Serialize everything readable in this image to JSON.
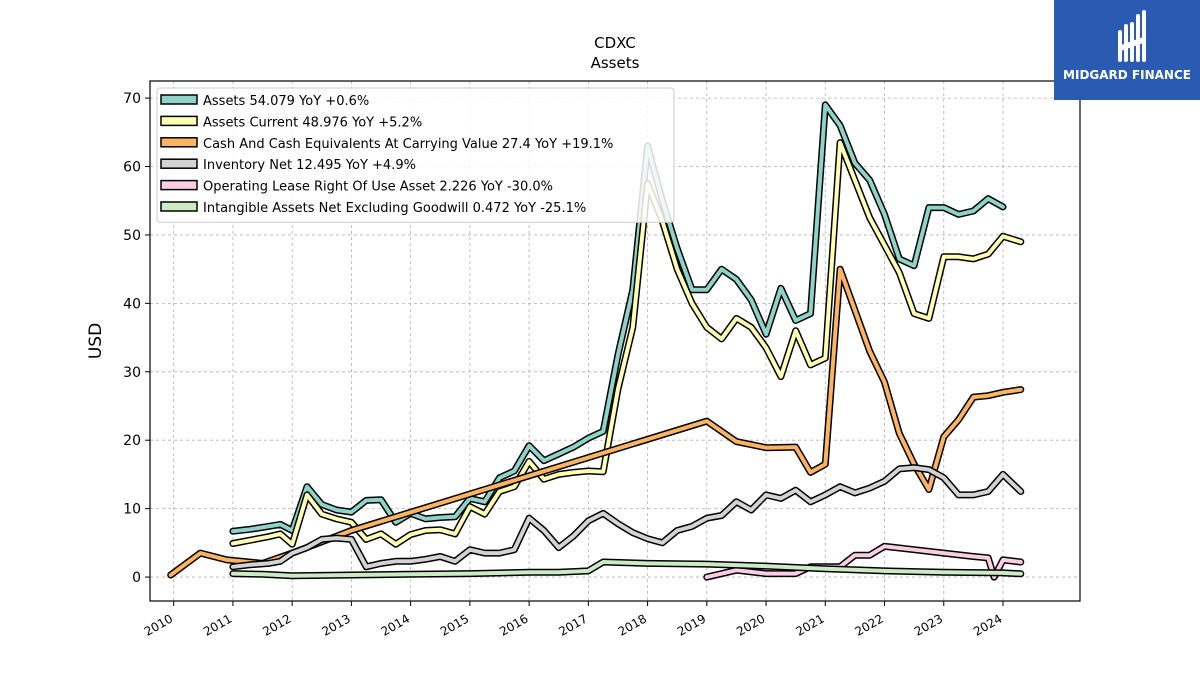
{
  "brand": {
    "name": "MIDGARD FINANCE",
    "color": "#2b5ab3"
  },
  "chart_data": {
    "type": "line",
    "title": "CDXC",
    "subtitle": "Assets",
    "ylabel": "USD",
    "xlim": [
      2009.6,
      2025.3
    ],
    "ylim": [
      -3.5,
      72.5
    ],
    "yticks": [
      0,
      10,
      20,
      30,
      40,
      50,
      60,
      70
    ],
    "xticks": [
      "2010",
      "2011",
      "2012",
      "2013",
      "2014",
      "2015",
      "2016",
      "2017",
      "2018",
      "2019",
      "2020",
      "2021",
      "2022",
      "2023",
      "2024"
    ],
    "grid": true,
    "legend_position": "top-left",
    "series": [
      {
        "name": "Assets",
        "legend": "Assets  54.079 YoY +0.6%",
        "color": "#8dd3c7",
        "points": [
          [
            2011.0,
            6.7
          ],
          [
            2011.3,
            7.0
          ],
          [
            2011.6,
            7.4
          ],
          [
            2011.8,
            7.7
          ],
          [
            2012.0,
            6.8
          ],
          [
            2012.25,
            13.2
          ],
          [
            2012.5,
            10.6
          ],
          [
            2012.75,
            9.8
          ],
          [
            2013.0,
            9.5
          ],
          [
            2013.25,
            11.2
          ],
          [
            2013.5,
            11.3
          ],
          [
            2013.75,
            8.0
          ],
          [
            2014.0,
            9.3
          ],
          [
            2014.25,
            8.5
          ],
          [
            2014.5,
            8.7
          ],
          [
            2014.75,
            8.8
          ],
          [
            2015.0,
            11.5
          ],
          [
            2015.25,
            11.0
          ],
          [
            2015.5,
            14.5
          ],
          [
            2015.75,
            15.5
          ],
          [
            2016.0,
            19.2
          ],
          [
            2016.25,
            17.0
          ],
          [
            2016.5,
            18.0
          ],
          [
            2016.75,
            19.0
          ],
          [
            2017.0,
            20.3
          ],
          [
            2017.25,
            21.3
          ],
          [
            2017.5,
            32.5
          ],
          [
            2017.75,
            42.0
          ],
          [
            2018.0,
            63.0
          ],
          [
            2018.25,
            55.0
          ],
          [
            2018.5,
            48.0
          ],
          [
            2018.75,
            42.0
          ],
          [
            2019.0,
            42.0
          ],
          [
            2019.25,
            45.0
          ],
          [
            2019.5,
            43.5
          ],
          [
            2019.75,
            40.5
          ],
          [
            2020.0,
            35.5
          ],
          [
            2020.25,
            42.2
          ],
          [
            2020.5,
            37.5
          ],
          [
            2020.75,
            38.5
          ],
          [
            2021.0,
            69.0
          ],
          [
            2021.25,
            66.0
          ],
          [
            2021.5,
            60.5
          ],
          [
            2021.75,
            58.0
          ],
          [
            2022.0,
            53.0
          ],
          [
            2022.25,
            46.5
          ],
          [
            2022.5,
            45.5
          ],
          [
            2022.75,
            54.0
          ],
          [
            2023.0,
            54.0
          ],
          [
            2023.25,
            53.0
          ],
          [
            2023.5,
            53.5
          ],
          [
            2023.75,
            55.3
          ],
          [
            2024.0,
            54.1
          ]
        ]
      },
      {
        "name": "Assets Current",
        "legend": "Assets Current  48.976 YoY +5.2%",
        "color": "#ffffb3",
        "points": [
          [
            2011.0,
            4.9
          ],
          [
            2011.3,
            5.4
          ],
          [
            2011.6,
            5.9
          ],
          [
            2011.8,
            6.3
          ],
          [
            2012.0,
            4.8
          ],
          [
            2012.25,
            12.0
          ],
          [
            2012.5,
            9.2
          ],
          [
            2012.75,
            8.5
          ],
          [
            2013.0,
            8.0
          ],
          [
            2013.25,
            5.5
          ],
          [
            2013.5,
            6.3
          ],
          [
            2013.75,
            4.8
          ],
          [
            2014.0,
            6.2
          ],
          [
            2014.25,
            6.8
          ],
          [
            2014.5,
            6.9
          ],
          [
            2014.75,
            6.3
          ],
          [
            2015.0,
            10.3
          ],
          [
            2015.25,
            9.2
          ],
          [
            2015.5,
            12.5
          ],
          [
            2015.75,
            13.2
          ],
          [
            2016.0,
            16.9
          ],
          [
            2016.25,
            14.3
          ],
          [
            2016.5,
            15.0
          ],
          [
            2016.75,
            15.3
          ],
          [
            2017.0,
            15.5
          ],
          [
            2017.25,
            15.4
          ],
          [
            2017.5,
            27.5
          ],
          [
            2017.75,
            36.5
          ],
          [
            2018.0,
            57.5
          ],
          [
            2018.25,
            52.0
          ],
          [
            2018.5,
            45.0
          ],
          [
            2018.75,
            40.0
          ],
          [
            2019.0,
            36.5
          ],
          [
            2019.25,
            34.8
          ],
          [
            2019.5,
            37.8
          ],
          [
            2019.75,
            36.5
          ],
          [
            2020.0,
            33.5
          ],
          [
            2020.25,
            29.3
          ],
          [
            2020.5,
            36.0
          ],
          [
            2020.75,
            31.0
          ],
          [
            2021.0,
            32.0
          ],
          [
            2021.25,
            63.5
          ],
          [
            2021.5,
            58.0
          ],
          [
            2021.75,
            52.5
          ],
          [
            2022.0,
            48.5
          ],
          [
            2022.25,
            44.5
          ],
          [
            2022.5,
            38.5
          ],
          [
            2022.75,
            37.8
          ],
          [
            2023.0,
            46.8
          ],
          [
            2023.25,
            46.8
          ],
          [
            2023.5,
            46.5
          ],
          [
            2023.75,
            47.2
          ],
          [
            2024.0,
            49.8
          ],
          [
            2024.3,
            49.0
          ]
        ]
      },
      {
        "name": "Cash And Cash Equivalents At Carrying Value",
        "legend": "Cash And Cash Equivalents At Carrying Value  27.4 YoY +19.1%",
        "color": "#fdb462",
        "points": [
          [
            2009.95,
            0.3
          ],
          [
            2010.45,
            3.5
          ],
          [
            2010.9,
            2.5
          ],
          [
            2011.5,
            2.0
          ],
          [
            2012.0,
            3.5
          ],
          [
            2013.0,
            6.8
          ],
          [
            2019.0,
            22.8
          ],
          [
            2019.5,
            19.8
          ],
          [
            2020.0,
            18.9
          ],
          [
            2020.5,
            19.0
          ],
          [
            2020.75,
            15.3
          ],
          [
            2021.0,
            16.5
          ],
          [
            2021.25,
            45.0
          ],
          [
            2021.5,
            39.0
          ],
          [
            2021.75,
            33.0
          ],
          [
            2022.0,
            28.5
          ],
          [
            2022.25,
            21.0
          ],
          [
            2022.5,
            16.5
          ],
          [
            2022.75,
            12.8
          ],
          [
            2023.0,
            20.5
          ],
          [
            2023.25,
            23.0
          ],
          [
            2023.5,
            26.3
          ],
          [
            2023.75,
            26.5
          ],
          [
            2024.0,
            27.0
          ],
          [
            2024.3,
            27.4
          ]
        ]
      },
      {
        "name": "Inventory Net",
        "legend": "Inventory Net  12.495 YoY +4.9%",
        "color": "#d3d3d3",
        "points": [
          [
            2011.0,
            1.5
          ],
          [
            2011.3,
            1.8
          ],
          [
            2011.6,
            2.0
          ],
          [
            2011.8,
            2.3
          ],
          [
            2012.0,
            3.5
          ],
          [
            2012.25,
            4.3
          ],
          [
            2012.5,
            5.5
          ],
          [
            2012.75,
            5.7
          ],
          [
            2013.0,
            5.5
          ],
          [
            2013.25,
            1.5
          ],
          [
            2013.5,
            2.0
          ],
          [
            2013.75,
            2.3
          ],
          [
            2014.0,
            2.3
          ],
          [
            2014.25,
            2.6
          ],
          [
            2014.5,
            3.0
          ],
          [
            2014.75,
            2.3
          ],
          [
            2015.0,
            4.0
          ],
          [
            2015.25,
            3.5
          ],
          [
            2015.5,
            3.5
          ],
          [
            2015.75,
            4.0
          ],
          [
            2016.0,
            8.6
          ],
          [
            2016.25,
            6.8
          ],
          [
            2016.5,
            4.3
          ],
          [
            2016.75,
            6.0
          ],
          [
            2017.0,
            8.2
          ],
          [
            2017.25,
            9.3
          ],
          [
            2017.5,
            7.8
          ],
          [
            2017.75,
            6.5
          ],
          [
            2018.0,
            5.6
          ],
          [
            2018.25,
            5.0
          ],
          [
            2018.5,
            6.8
          ],
          [
            2018.75,
            7.4
          ],
          [
            2019.0,
            8.6
          ],
          [
            2019.25,
            9.0
          ],
          [
            2019.5,
            11.0
          ],
          [
            2019.75,
            9.8
          ],
          [
            2020.0,
            12.0
          ],
          [
            2020.25,
            11.5
          ],
          [
            2020.5,
            12.7
          ],
          [
            2020.75,
            11.0
          ],
          [
            2021.0,
            12.0
          ],
          [
            2021.25,
            13.2
          ],
          [
            2021.5,
            12.3
          ],
          [
            2021.75,
            13.0
          ],
          [
            2022.0,
            14.0
          ],
          [
            2022.25,
            15.8
          ],
          [
            2022.5,
            16.0
          ],
          [
            2022.75,
            15.7
          ],
          [
            2023.0,
            14.5
          ],
          [
            2023.25,
            12.0
          ],
          [
            2023.5,
            12.0
          ],
          [
            2023.75,
            12.5
          ],
          [
            2024.0,
            15.0
          ],
          [
            2024.3,
            12.5
          ]
        ]
      },
      {
        "name": "Operating Lease Right Of Use Asset",
        "legend": "Operating Lease Right Of Use Asset  2.226 YoY -30.0%",
        "color": "#fccde5",
        "points": [
          [
            2019.0,
            0.0
          ],
          [
            2019.5,
            1.0
          ],
          [
            2020.0,
            0.5
          ],
          [
            2020.5,
            0.5
          ],
          [
            2020.75,
            1.5
          ],
          [
            2021.25,
            1.5
          ],
          [
            2021.5,
            3.2
          ],
          [
            2021.75,
            3.2
          ],
          [
            2022.0,
            4.5
          ],
          [
            2022.5,
            4.0
          ],
          [
            2023.0,
            3.5
          ],
          [
            2023.5,
            3.0
          ],
          [
            2023.75,
            2.8
          ],
          [
            2023.85,
            0.0
          ],
          [
            2024.0,
            2.5
          ],
          [
            2024.3,
            2.2
          ]
        ]
      },
      {
        "name": "Intangible Assets Net Excluding Goodwill",
        "legend": "Intangible Assets Net Excluding Goodwill  0.472 YoY -25.1%",
        "color": "#ccebc5",
        "points": [
          [
            2011.0,
            0.5
          ],
          [
            2011.5,
            0.4
          ],
          [
            2012.0,
            0.2
          ],
          [
            2013.0,
            0.3
          ],
          [
            2014.0,
            0.4
          ],
          [
            2015.0,
            0.5
          ],
          [
            2016.0,
            0.7
          ],
          [
            2016.5,
            0.7
          ],
          [
            2017.0,
            0.9
          ],
          [
            2017.25,
            2.2
          ],
          [
            2018.0,
            2.0
          ],
          [
            2019.0,
            1.9
          ],
          [
            2020.0,
            1.6
          ],
          [
            2021.0,
            1.2
          ],
          [
            2022.0,
            0.9
          ],
          [
            2023.0,
            0.7
          ],
          [
            2024.0,
            0.6
          ],
          [
            2024.3,
            0.47
          ]
        ]
      }
    ]
  }
}
